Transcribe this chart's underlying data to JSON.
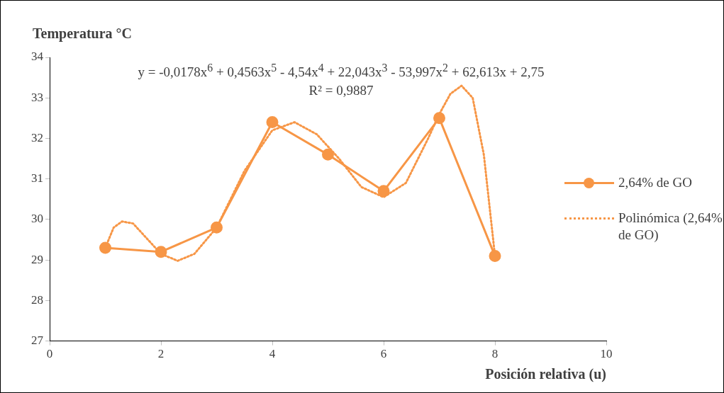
{
  "chart_data": {
    "type": "line",
    "ylabel": "Temperatura °C",
    "xlabel": "Posición relativa (u)",
    "annotations": [
      "y = -0,0178x$^{6}$ + 0,4563x$^{5}$ - 4,54x$^{4}$ + 22,043x$^{3}$ - 53,997x$^{2}$ + 62,613x + 2,75",
      "R² = 0,9887"
    ],
    "x": [
      1,
      2,
      3,
      4,
      5,
      6,
      7,
      8
    ],
    "xlim": [
      0,
      10
    ],
    "xticks": [
      0,
      2,
      4,
      6,
      8,
      10
    ],
    "ylim": [
      27,
      34
    ],
    "yticks": [
      27,
      28,
      29,
      30,
      31,
      32,
      33,
      34
    ],
    "legend": "right",
    "grid": false,
    "series": [
      {
        "name": "2,64% de GO",
        "color": "#f79646",
        "values": [
          29.3,
          29.2,
          29.8,
          32.4,
          31.6,
          30.7,
          32.5,
          29.1
        ],
        "marker": "circle",
        "line_style": "solid"
      },
      {
        "name": "Polinómica (2,64% de GO)",
        "color": "#f79646",
        "type": "line",
        "x": [
          1,
          1.15,
          1.3,
          1.5,
          1.7,
          2,
          2.3,
          2.6,
          3,
          3.5,
          4,
          4.4,
          4.8,
          5.2,
          5.6,
          6,
          6.4,
          6.8,
          7,
          7.2,
          7.4,
          7.6,
          7.8,
          8
        ],
        "values": [
          29.3,
          29.8,
          29.95,
          29.9,
          29.6,
          29.15,
          28.98,
          29.15,
          29.8,
          31.2,
          32.2,
          32.4,
          32.1,
          31.5,
          30.8,
          30.55,
          30.9,
          32.0,
          32.6,
          33.1,
          33.3,
          33.0,
          31.6,
          29.1
        ],
        "marker": "none",
        "line_style": "dotted"
      }
    ]
  }
}
